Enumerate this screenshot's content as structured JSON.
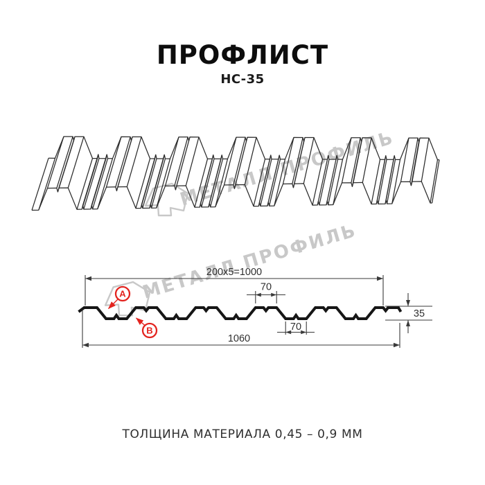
{
  "title": "ПРОФЛИСТ",
  "subtitle": "НС-35",
  "footer": "ТОЛЩИНА МАТЕРИАЛА 0,45 – 0,9 ММ",
  "watermark": {
    "text": "МЕТАЛЛ ПРОФИЛЬ"
  },
  "dimensions": {
    "top_width": "200x5=1000",
    "crest_width": "70",
    "valley_width": "70",
    "height": "35",
    "total_width": "1060"
  },
  "labels": {
    "a": "A",
    "b": "B"
  },
  "colors": {
    "accent_red": "#e3231e",
    "line_dark": "#161616",
    "sheet_line": "#2b2b2b",
    "dimension_line": "#3a3a3a",
    "watermark_gray": "#c8c8c8"
  }
}
